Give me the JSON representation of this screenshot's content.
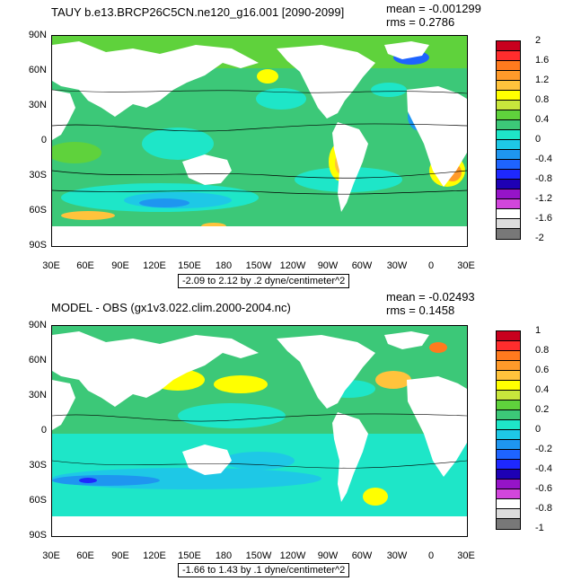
{
  "panels": [
    {
      "title": "TAUY b.e13.BRCP26C5CN.ne120_g16.001 [2090-2099]",
      "mean": "mean = -0.001299",
      "rms": "rms = 0.2786",
      "caption": "-2.09 to 2.12 by .2 dyne/centimeter^2",
      "lat_labels": [
        "90N",
        "60N",
        "30N",
        "0",
        "30S",
        "60S",
        "90S"
      ],
      "lon_labels": [
        "30E",
        "60E",
        "90E",
        "120E",
        "150E",
        "180",
        "150W",
        "120W",
        "90W",
        "60W",
        "30W",
        "0",
        "30E"
      ],
      "colorbar": {
        "labels": [
          "2",
          "1.6",
          "1.2",
          "0.8",
          "0.4",
          "0",
          "-0.4",
          "-0.8",
          "-1.2",
          "-1.6",
          "-2"
        ],
        "colors": [
          "#c8001e",
          "#ff2d2d",
          "#ff7a1e",
          "#ff9a2a",
          "#ffc33c",
          "#ffff00",
          "#c8e63c",
          "#5fd23c",
          "#3cc878",
          "#1ee6c8",
          "#1ec8e6",
          "#1e96f0",
          "#1e64ff",
          "#1e28ff",
          "#1e00b4",
          "#9614c8",
          "#d246dc",
          "#ffffff",
          "#dcdcdc",
          "#787878"
        ]
      }
    },
    {
      "title": "MODEL - OBS (gx1v3.022.clim.2000-2004.nc)",
      "mean": "mean = -0.02493",
      "rms": "rms = 0.1458",
      "caption": "-1.66 to 1.43 by .1 dyne/centimeter^2",
      "lat_labels": [
        "90N",
        "60N",
        "30N",
        "0",
        "30S",
        "60S",
        "90S"
      ],
      "lon_labels": [
        "30E",
        "60E",
        "90E",
        "120E",
        "150E",
        "180",
        "150W",
        "120W",
        "90W",
        "60W",
        "30W",
        "0",
        "30E"
      ],
      "colorbar": {
        "labels": [
          "1",
          "0.8",
          "0.6",
          "0.4",
          "0.2",
          "0",
          "-0.2",
          "-0.4",
          "-0.6",
          "-0.8",
          "-1"
        ],
        "colors": [
          "#c8001e",
          "#ff2d2d",
          "#ff7a1e",
          "#ff9a2a",
          "#ffc33c",
          "#ffff00",
          "#c8e63c",
          "#5fd23c",
          "#3cc878",
          "#1ee6c8",
          "#1ec8e6",
          "#1e96f0",
          "#1e64ff",
          "#1e28ff",
          "#1e00b4",
          "#9614c8",
          "#d246dc",
          "#ffffff",
          "#dcdcdc",
          "#787878"
        ]
      }
    }
  ],
  "colors": {
    "ocean_base": "#3cc878",
    "land": "#ffffff",
    "frame": "#000000"
  }
}
